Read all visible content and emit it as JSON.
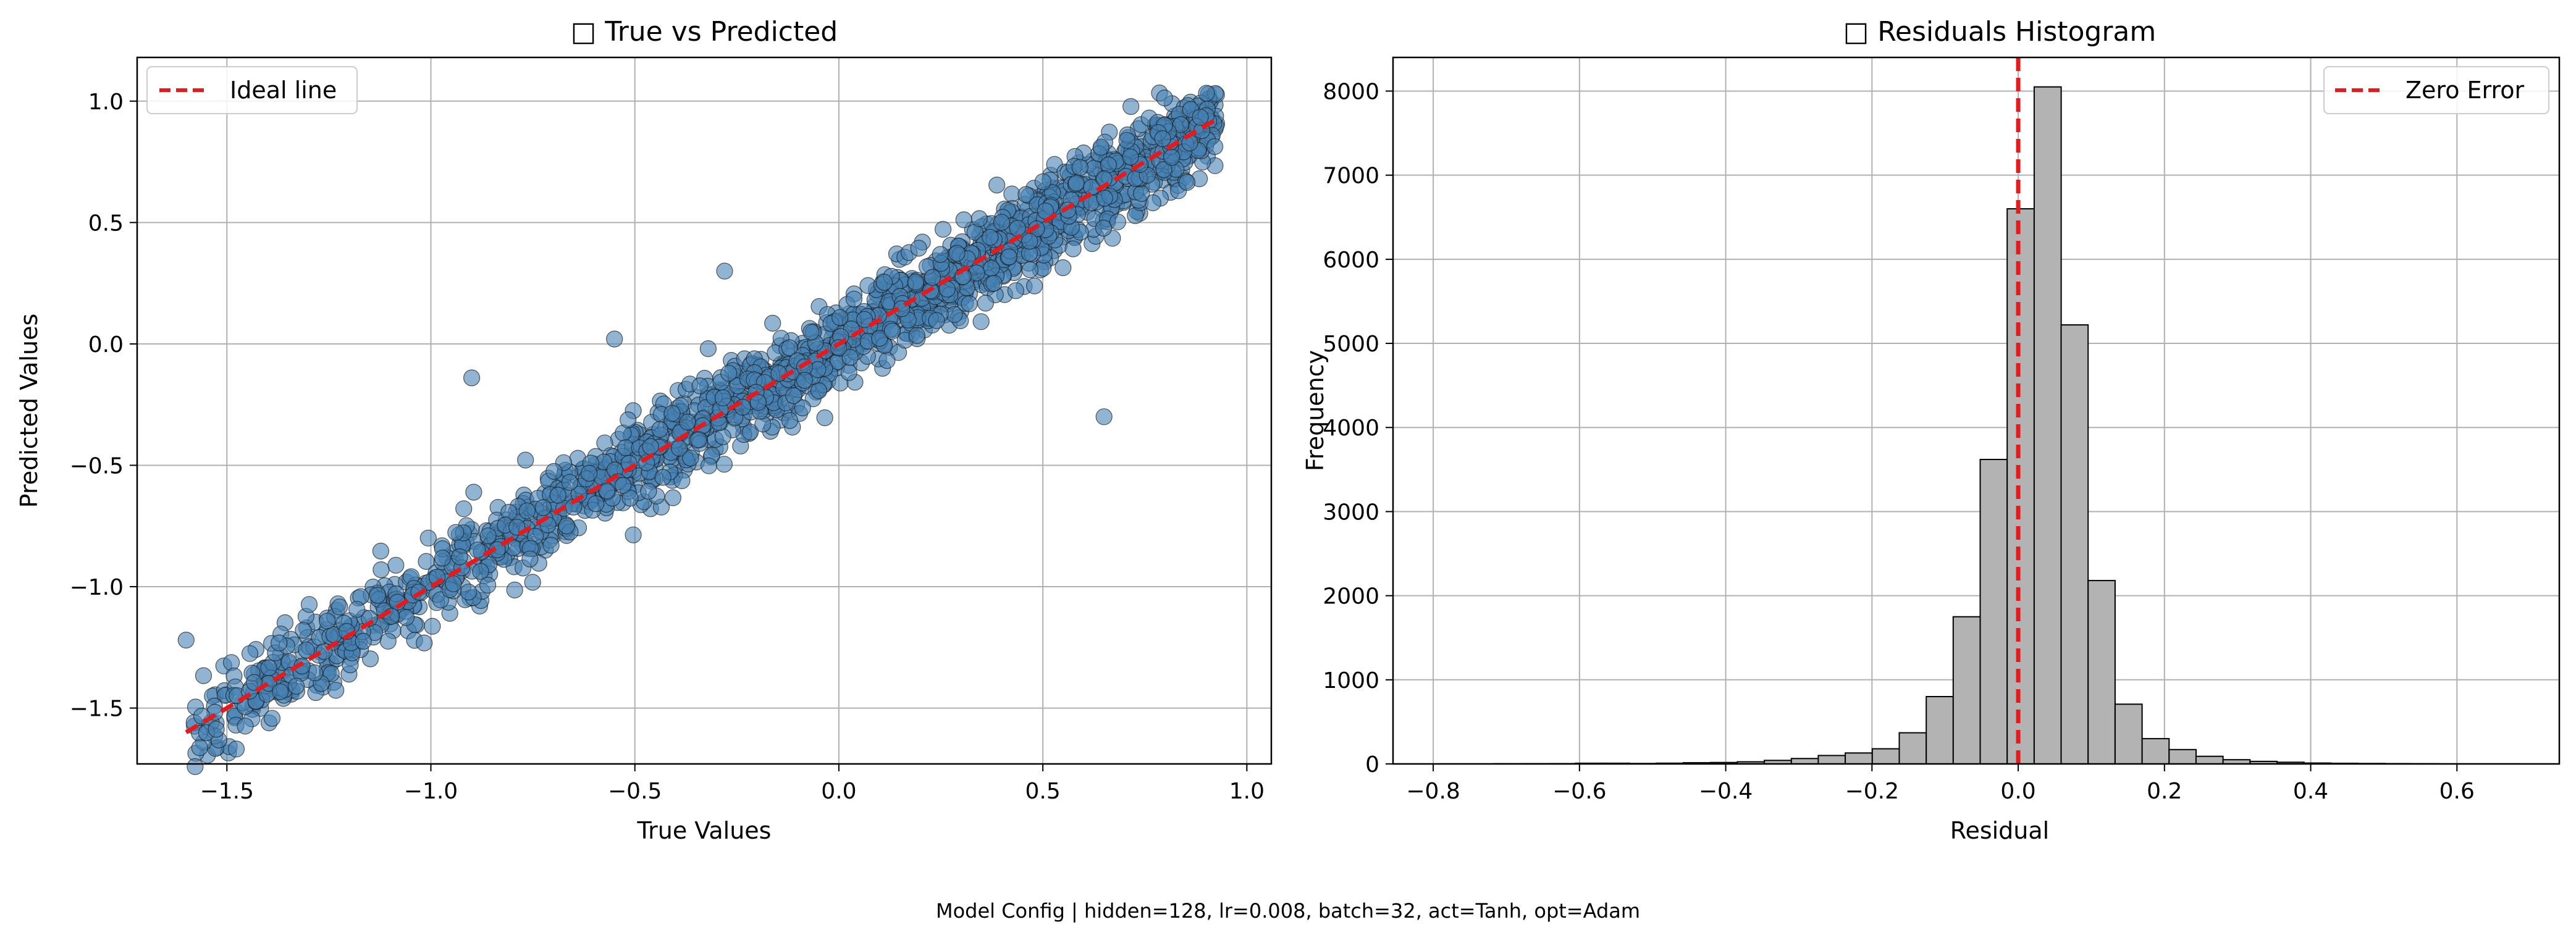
{
  "footer": "Model Config | hidden=128, lr=0.008, batch=32, act=Tanh, opt=Adam",
  "colors": {
    "scatter_fill": "#4682b4",
    "scatter_edge": "#1a1a1a",
    "ideal_line": "#e41a1c",
    "hist_fill": "#b3b3b3",
    "hist_edge": "#000000",
    "grid": "#b0b0b0"
  },
  "chart_data": [
    {
      "type": "scatter",
      "title": "□ True vs Predicted",
      "xlabel": "True Values",
      "ylabel": "Predicted Values",
      "xlim": [
        -1.72,
        1.06
      ],
      "ylim": [
        -1.73,
        1.18
      ],
      "xticks": [
        -1.5,
        -1.0,
        -0.5,
        0.0,
        0.5,
        1.0
      ],
      "yticks": [
        -1.5,
        -1.0,
        -0.5,
        0.0,
        0.5,
        1.0
      ],
      "grid": true,
      "legend": {
        "position": "top-left",
        "entries": [
          "Ideal line"
        ]
      },
      "series": [
        {
          "name": "",
          "kind": "points",
          "note_distribution": "dense cloud along y=x with noise",
          "generator": {
            "x_range": [
              -1.6,
              0.93
            ],
            "noise": 0.09,
            "count": 1800
          }
        },
        {
          "name": "Ideal line",
          "kind": "line",
          "style": "dashed",
          "x": [
            -1.6,
            0.93
          ],
          "y": [
            -1.6,
            0.93
          ]
        }
      ],
      "notable_points": [
        {
          "x": -1.6,
          "y": -1.22
        },
        {
          "x": -1.33,
          "y": -1.41
        },
        {
          "x": 0.38,
          "y": 0.25
        },
        {
          "x": 0.65,
          "y": 0.68
        },
        {
          "x": -0.9,
          "y": -0.14
        },
        {
          "x": 0.65,
          "y": -0.3
        },
        {
          "x": -0.55,
          "y": 0.02
        },
        {
          "x": -0.28,
          "y": 0.3
        }
      ]
    },
    {
      "type": "bar",
      "title": "□ Residuals Histogram",
      "xlabel": "Residual",
      "ylabel": "Frequency",
      "xlim": [
        -0.855,
        0.74
      ],
      "ylim": [
        0,
        8400
      ],
      "xticks": [
        -0.8,
        -0.6,
        -0.4,
        -0.2,
        0.0,
        0.2,
        0.4,
        0.6
      ],
      "yticks": [
        0,
        1000,
        2000,
        3000,
        4000,
        5000,
        6000,
        7000,
        8000
      ],
      "grid": true,
      "legend": {
        "position": "top-right",
        "entries": [
          "Zero Error"
        ]
      },
      "bin_edges_start": -0.79,
      "bin_width": 0.0369,
      "counts": [
        1,
        1,
        2,
        3,
        4,
        8,
        8,
        5,
        9,
        14,
        17,
        25,
        42,
        64,
        100,
        130,
        180,
        370,
        800,
        1750,
        3620,
        6600,
        8050,
        5220,
        2180,
        710,
        300,
        170,
        90,
        50,
        30,
        20,
        10,
        7,
        5,
        4,
        2,
        1,
        1,
        1
      ],
      "vline": {
        "name": "Zero Error",
        "x": 0.0,
        "style": "dashed"
      }
    }
  ]
}
